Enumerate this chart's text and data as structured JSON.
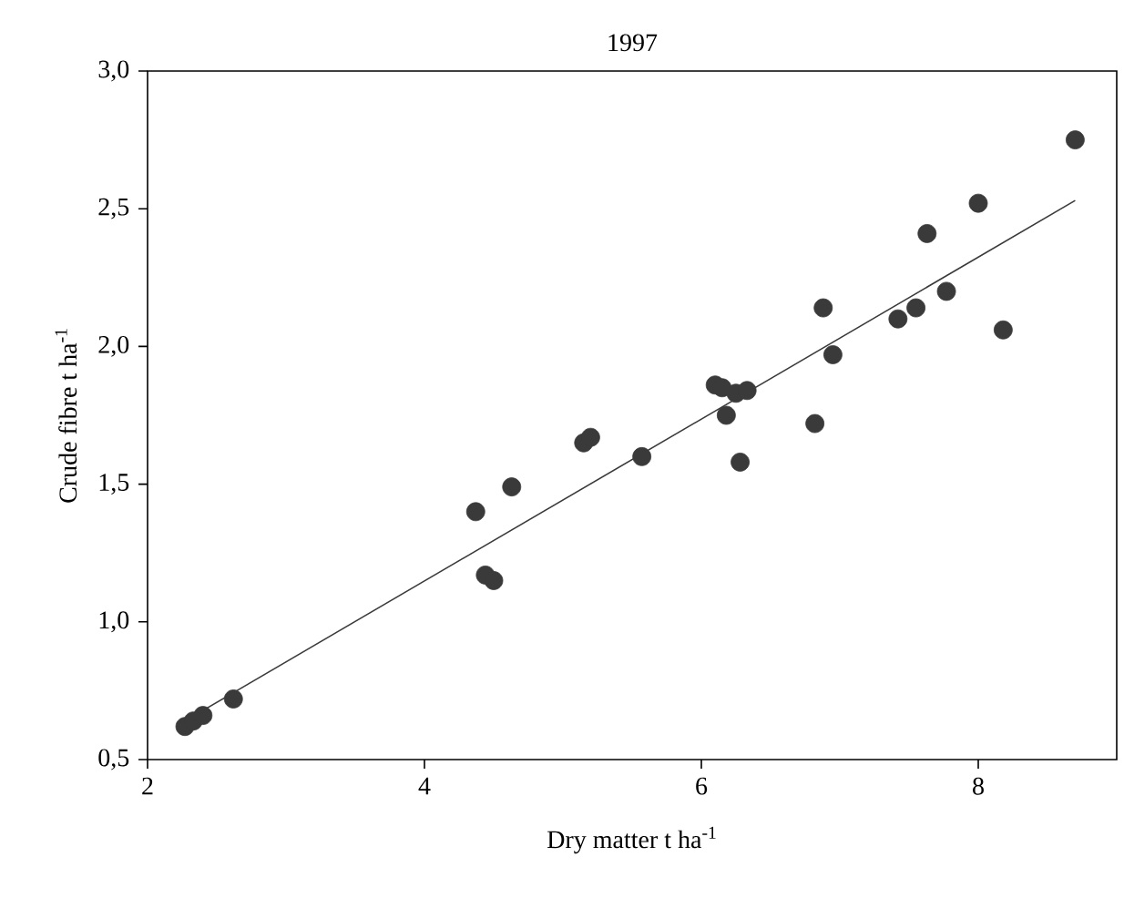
{
  "chart_data": {
    "type": "scatter",
    "title": "1997",
    "xlabel": "Dry matter t ha$^{-1}$",
    "ylabel": "Crude fibre t ha$^{-1}$",
    "xlim": [
      2,
      9
    ],
    "ylim": [
      0.5,
      3.0
    ],
    "xticks": [
      2,
      4,
      6,
      8
    ],
    "yticks": [
      {
        "value": 0.5,
        "label": "0,5"
      },
      {
        "value": 1.0,
        "label": "1,0"
      },
      {
        "value": 1.5,
        "label": "1,5"
      },
      {
        "value": 2.0,
        "label": "2,0"
      },
      {
        "value": 2.5,
        "label": "2,5"
      },
      {
        "value": 3.0,
        "label": "3,0"
      }
    ],
    "grid": false,
    "series": [
      {
        "marker": "circle",
        "color": "#3a3a3a",
        "x": [
          2.27,
          2.33,
          2.4,
          2.62,
          4.37,
          4.44,
          4.5,
          4.63,
          5.15,
          5.2,
          5.57,
          6.1,
          6.15,
          6.18,
          6.25,
          6.28,
          6.33,
          6.82,
          6.88,
          6.95,
          7.42,
          7.55,
          7.63,
          7.77,
          8.0,
          8.18,
          8.7
        ],
        "values": [
          0.62,
          0.64,
          0.66,
          0.72,
          1.4,
          1.17,
          1.15,
          1.49,
          1.65,
          1.67,
          1.6,
          1.86,
          1.85,
          1.75,
          1.83,
          1.58,
          1.84,
          1.72,
          2.14,
          1.97,
          2.1,
          2.14,
          2.41,
          2.2,
          2.52,
          2.06,
          2.75
        ]
      },
      {
        "type": "line",
        "line_style": "solid",
        "color": "#3a3a3a",
        "x": [
          2.27,
          8.7
        ],
        "values": [
          0.64,
          2.53
        ]
      }
    ]
  }
}
